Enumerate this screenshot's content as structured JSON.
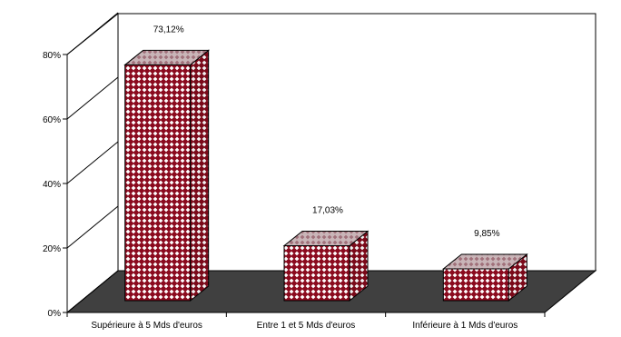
{
  "chart_data": {
    "type": "bar",
    "title": "",
    "xlabel": "",
    "ylabel": "",
    "categories": [
      "Supérieure à 5 Mds d'euros",
      "Entre 1 et 5 Mds d'euros",
      "Inférieure à 1 Mds d'euros"
    ],
    "values": [
      73.12,
      17.03,
      9.85
    ],
    "data_labels": [
      "73,12%",
      "17,03%",
      "9,85%"
    ],
    "ylim": [
      0,
      80
    ],
    "yticks": [
      0,
      20,
      40,
      60,
      80
    ],
    "ytick_labels": [
      "0%",
      "20%",
      "40%",
      "60%",
      "80%"
    ],
    "grid": false,
    "legend": "none",
    "three_d": true,
    "colors": {
      "bar_fill": "#8b0a1e",
      "bar_pattern": "#ffffff",
      "floor": "#404040",
      "walls": "#ffffff",
      "axis": "#000000"
    }
  }
}
